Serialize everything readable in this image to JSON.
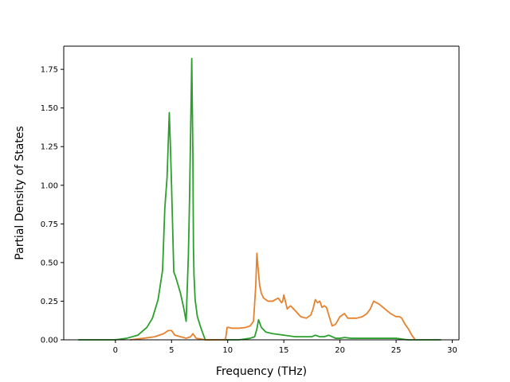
{
  "chart_data": {
    "type": "line",
    "title": "",
    "xlabel": "Frequency (THz)",
    "ylabel": "Partial Density of States",
    "xlim": [
      -4.6,
      30.6
    ],
    "ylim": [
      0.0,
      1.9
    ],
    "xticks": [
      0,
      5,
      10,
      15,
      20,
      25,
      30
    ],
    "yticks": [
      0.0,
      0.25,
      0.5,
      0.75,
      1.0,
      1.25,
      1.5,
      1.75
    ],
    "xtick_labels": [
      "0",
      "5",
      "10",
      "15",
      "20",
      "25",
      "30"
    ],
    "ytick_labels": [
      "0.00",
      "0.25",
      "0.50",
      "0.75",
      "1.00",
      "1.25",
      "1.50",
      "1.75"
    ],
    "grid": false,
    "legend": "none",
    "series": [
      {
        "color": "#2ca02c",
        "x": [
          -3.3,
          0.0,
          1.0,
          2.0,
          2.8,
          3.3,
          3.8,
          4.2,
          4.4,
          4.6,
          4.8,
          4.9,
          5.0,
          5.2,
          5.4,
          5.8,
          6.1,
          6.3,
          6.5,
          6.6,
          6.7,
          6.8,
          6.9,
          6.95,
          7.0,
          7.1,
          7.3,
          7.6,
          8.0,
          8.3,
          8.6,
          10.0,
          11.0,
          12.0,
          12.4,
          12.6,
          12.75,
          13.0,
          13.4,
          14.0,
          15.0,
          16.0,
          17.0,
          17.5,
          17.8,
          18.2,
          18.6,
          19.0,
          19.3,
          19.6,
          20.0,
          20.4,
          21.0,
          22.0,
          23.0,
          24.0,
          25.0,
          26.0,
          27.0,
          29.0
        ],
        "values": [
          0.0,
          0.0,
          0.01,
          0.03,
          0.08,
          0.14,
          0.26,
          0.45,
          0.85,
          1.05,
          1.47,
          1.25,
          1.0,
          0.44,
          0.4,
          0.3,
          0.2,
          0.12,
          0.55,
          0.9,
          1.35,
          1.82,
          1.2,
          0.6,
          0.42,
          0.26,
          0.15,
          0.08,
          0.0,
          0.0,
          0.0,
          0.0,
          0.0,
          0.01,
          0.02,
          0.07,
          0.13,
          0.08,
          0.05,
          0.04,
          0.03,
          0.02,
          0.02,
          0.02,
          0.03,
          0.02,
          0.02,
          0.03,
          0.02,
          0.01,
          0.01,
          0.015,
          0.01,
          0.01,
          0.01,
          0.01,
          0.01,
          0.0,
          0.0,
          0.0
        ]
      },
      {
        "color": "#e6822e",
        "x": [
          1.3,
          2.5,
          3.5,
          4.3,
          4.7,
          5.0,
          5.3,
          5.8,
          6.3,
          6.7,
          6.9,
          7.2,
          7.6,
          8.0,
          9.8,
          9.95,
          10.1,
          10.4,
          11.0,
          11.6,
          12.0,
          12.3,
          12.5,
          12.6,
          12.7,
          12.85,
          13.0,
          13.2,
          13.6,
          14.0,
          14.5,
          14.8,
          14.9,
          15.0,
          15.1,
          15.3,
          15.6,
          16.0,
          16.5,
          17.0,
          17.4,
          17.6,
          17.8,
          18.0,
          18.2,
          18.4,
          18.6,
          18.8,
          19.0,
          19.3,
          19.6,
          20.0,
          20.4,
          20.7,
          21.0,
          21.5,
          22.0,
          22.4,
          22.7,
          23.0,
          23.5,
          24.0,
          24.5,
          25.0,
          25.3,
          25.5,
          25.8,
          26.1,
          26.4,
          26.7
        ],
        "values": [
          0.0,
          0.01,
          0.02,
          0.04,
          0.06,
          0.06,
          0.03,
          0.02,
          0.01,
          0.02,
          0.04,
          0.01,
          0.005,
          0.0,
          0.0,
          0.08,
          0.08,
          0.075,
          0.075,
          0.08,
          0.09,
          0.12,
          0.35,
          0.56,
          0.47,
          0.35,
          0.3,
          0.27,
          0.25,
          0.25,
          0.27,
          0.24,
          0.25,
          0.29,
          0.26,
          0.2,
          0.22,
          0.19,
          0.15,
          0.14,
          0.16,
          0.2,
          0.26,
          0.24,
          0.25,
          0.21,
          0.22,
          0.21,
          0.16,
          0.09,
          0.1,
          0.15,
          0.17,
          0.14,
          0.14,
          0.14,
          0.15,
          0.17,
          0.2,
          0.25,
          0.23,
          0.2,
          0.17,
          0.15,
          0.15,
          0.14,
          0.1,
          0.07,
          0.03,
          0.0
        ]
      }
    ]
  }
}
